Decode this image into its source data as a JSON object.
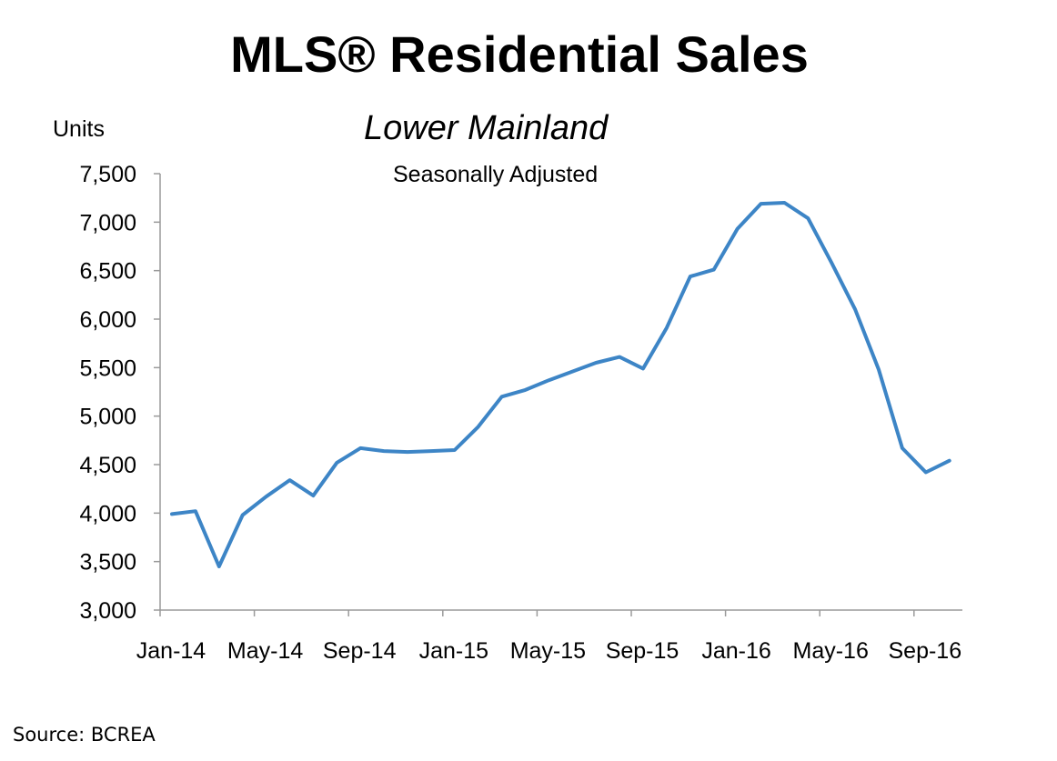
{
  "chart_data": {
    "type": "line",
    "title": "MLS® Residential Sales",
    "subtitle": "Lower Mainland",
    "note": "Seasonally Adjusted",
    "ylabel": "Units",
    "xlabel": "",
    "source": "Source: BCREA",
    "ylim": [
      3000,
      7500
    ],
    "ytick_values": [
      3000,
      3500,
      4000,
      4500,
      5000,
      5500,
      6000,
      6500,
      7000,
      7500
    ],
    "ytick_labels": [
      "3,000",
      "3,500",
      "4,000",
      "4,500",
      "5,000",
      "5,500",
      "6,000",
      "6,500",
      "7,000",
      "7,500"
    ],
    "xtick_labels": [
      "Jan-14",
      "May-14",
      "Sep-14",
      "Jan-15",
      "May-15",
      "Sep-15",
      "Jan-16",
      "May-16",
      "Sep-16"
    ],
    "grid": false,
    "legend": "none",
    "line_color": "#3d85c6",
    "x": [
      "Jan-14",
      "Feb-14",
      "Mar-14",
      "Apr-14",
      "May-14",
      "Jun-14",
      "Jul-14",
      "Aug-14",
      "Sep-14",
      "Oct-14",
      "Nov-14",
      "Dec-14",
      "Jan-15",
      "Feb-15",
      "Mar-15",
      "Apr-15",
      "May-15",
      "Jun-15",
      "Jul-15",
      "Aug-15",
      "Sep-15",
      "Oct-15",
      "Nov-15",
      "Dec-15",
      "Jan-16",
      "Feb-16",
      "Mar-16",
      "Apr-16",
      "May-16",
      "Jun-16",
      "Jul-16",
      "Aug-16",
      "Sep-16",
      "Oct-16"
    ],
    "series": [
      {
        "values": [
          3990,
          4020,
          3450,
          3980,
          4170,
          4340,
          4180,
          4520,
          4670,
          4640,
          4630,
          4640,
          4650,
          4890,
          5200,
          5270,
          5370,
          5460,
          5550,
          5610,
          5490,
          5910,
          6440,
          6510,
          6930,
          7190,
          7200,
          7040,
          6580,
          6100,
          5480,
          4670,
          4420,
          4540
        ]
      }
    ]
  }
}
